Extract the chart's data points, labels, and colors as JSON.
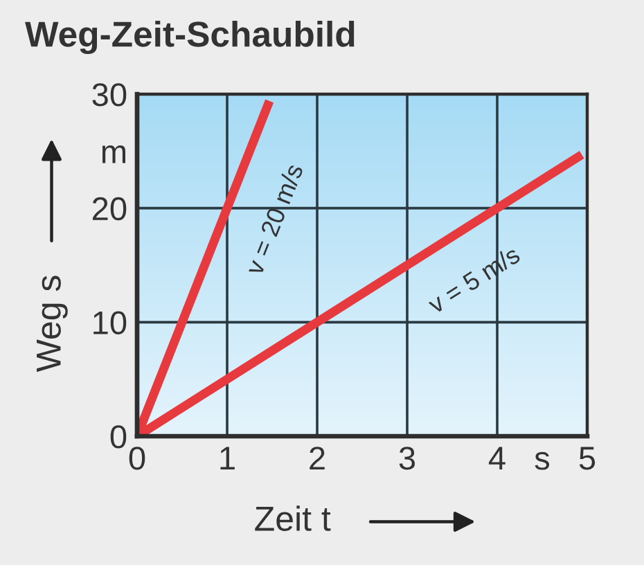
{
  "chart_data": {
    "type": "line",
    "title": "Weg-Zeit-Schaubild",
    "xlabel": "Zeit t",
    "ylabel": "Weg s",
    "series": [
      {
        "name": "v = 20 m/s",
        "color": "#e63a3f",
        "x": [
          0,
          1.47
        ],
        "values": [
          0,
          29.4
        ]
      },
      {
        "name": "v = 5 m/s",
        "color": "#e63a3f",
        "x": [
          0,
          4.94
        ],
        "values": [
          0,
          24.7
        ]
      }
    ],
    "xlim": [
      0,
      5
    ],
    "ylim": [
      0,
      30
    ],
    "xticks": [
      0,
      1,
      2,
      3,
      4,
      {
        "value": 4.5,
        "label": "s"
      },
      5
    ],
    "yticks": [
      0,
      10,
      20,
      {
        "value": 25,
        "label": "m"
      },
      30
    ],
    "grid": true,
    "line_style": "solid"
  }
}
